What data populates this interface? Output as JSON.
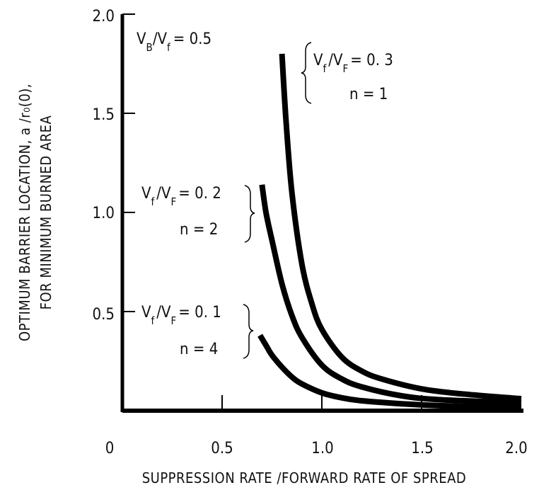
{
  "chart_data": {
    "type": "line",
    "title": "",
    "xlabel": "SUPPRESSION RATE /FORWARD RATE OF SPREAD",
    "ylabel_lines": [
      "OPTIMUM BARRIER LOCATION, a /r₀(0),",
      "FOR MINIMUM BURNED AREA"
    ],
    "xlim": [
      0,
      2.0
    ],
    "ylim": [
      0,
      2.0
    ],
    "x_ticks": [
      "0",
      "0.5",
      "1.0",
      "1.5",
      "2.0"
    ],
    "y_ticks": [
      "0.5",
      "1.0",
      "1.5",
      "2.0"
    ],
    "grid": false,
    "parameter_note": {
      "text": "V",
      "sub1": "B",
      "mid": "/V",
      "sub2": "f",
      "tail": "= 0.5"
    },
    "series": [
      {
        "label_ratio": {
          "v": "V",
          "sub1": "f",
          "slash": "/V",
          "sub2": "F",
          "val": "= 0. 3"
        },
        "label_n": "n = 1",
        "x": [
          0.8,
          0.82,
          0.85,
          0.9,
          0.95,
          1.0,
          1.1,
          1.2,
          1.3,
          1.5,
          1.7,
          2.0
        ],
        "y": [
          1.8,
          1.47,
          1.1,
          0.74,
          0.54,
          0.41,
          0.27,
          0.2,
          0.16,
          0.11,
          0.085,
          0.06
        ]
      },
      {
        "label_ratio": {
          "v": "V",
          "sub1": "f",
          "slash": "/V",
          "sub2": "F",
          "val": "= 0. 2"
        },
        "label_n": "n = 2",
        "x": [
          0.7,
          0.72,
          0.75,
          0.8,
          0.85,
          0.9,
          1.0,
          1.1,
          1.2,
          1.4,
          1.6,
          2.0
        ],
        "y": [
          1.14,
          1.0,
          0.86,
          0.64,
          0.48,
          0.37,
          0.23,
          0.16,
          0.12,
          0.075,
          0.055,
          0.04
        ]
      },
      {
        "label_ratio": {
          "v": "V",
          "sub1": "f",
          "slash": "/V",
          "sub2": "F",
          "val": "= 0. 1"
        },
        "label_n": "n = 4",
        "x": [
          0.69,
          0.72,
          0.75,
          0.8,
          0.85,
          0.9,
          1.0,
          1.1,
          1.2,
          1.4,
          1.6,
          2.0
        ],
        "y": [
          0.38,
          0.33,
          0.28,
          0.22,
          0.17,
          0.135,
          0.09,
          0.065,
          0.05,
          0.035,
          0.025,
          0.015
        ]
      }
    ]
  }
}
